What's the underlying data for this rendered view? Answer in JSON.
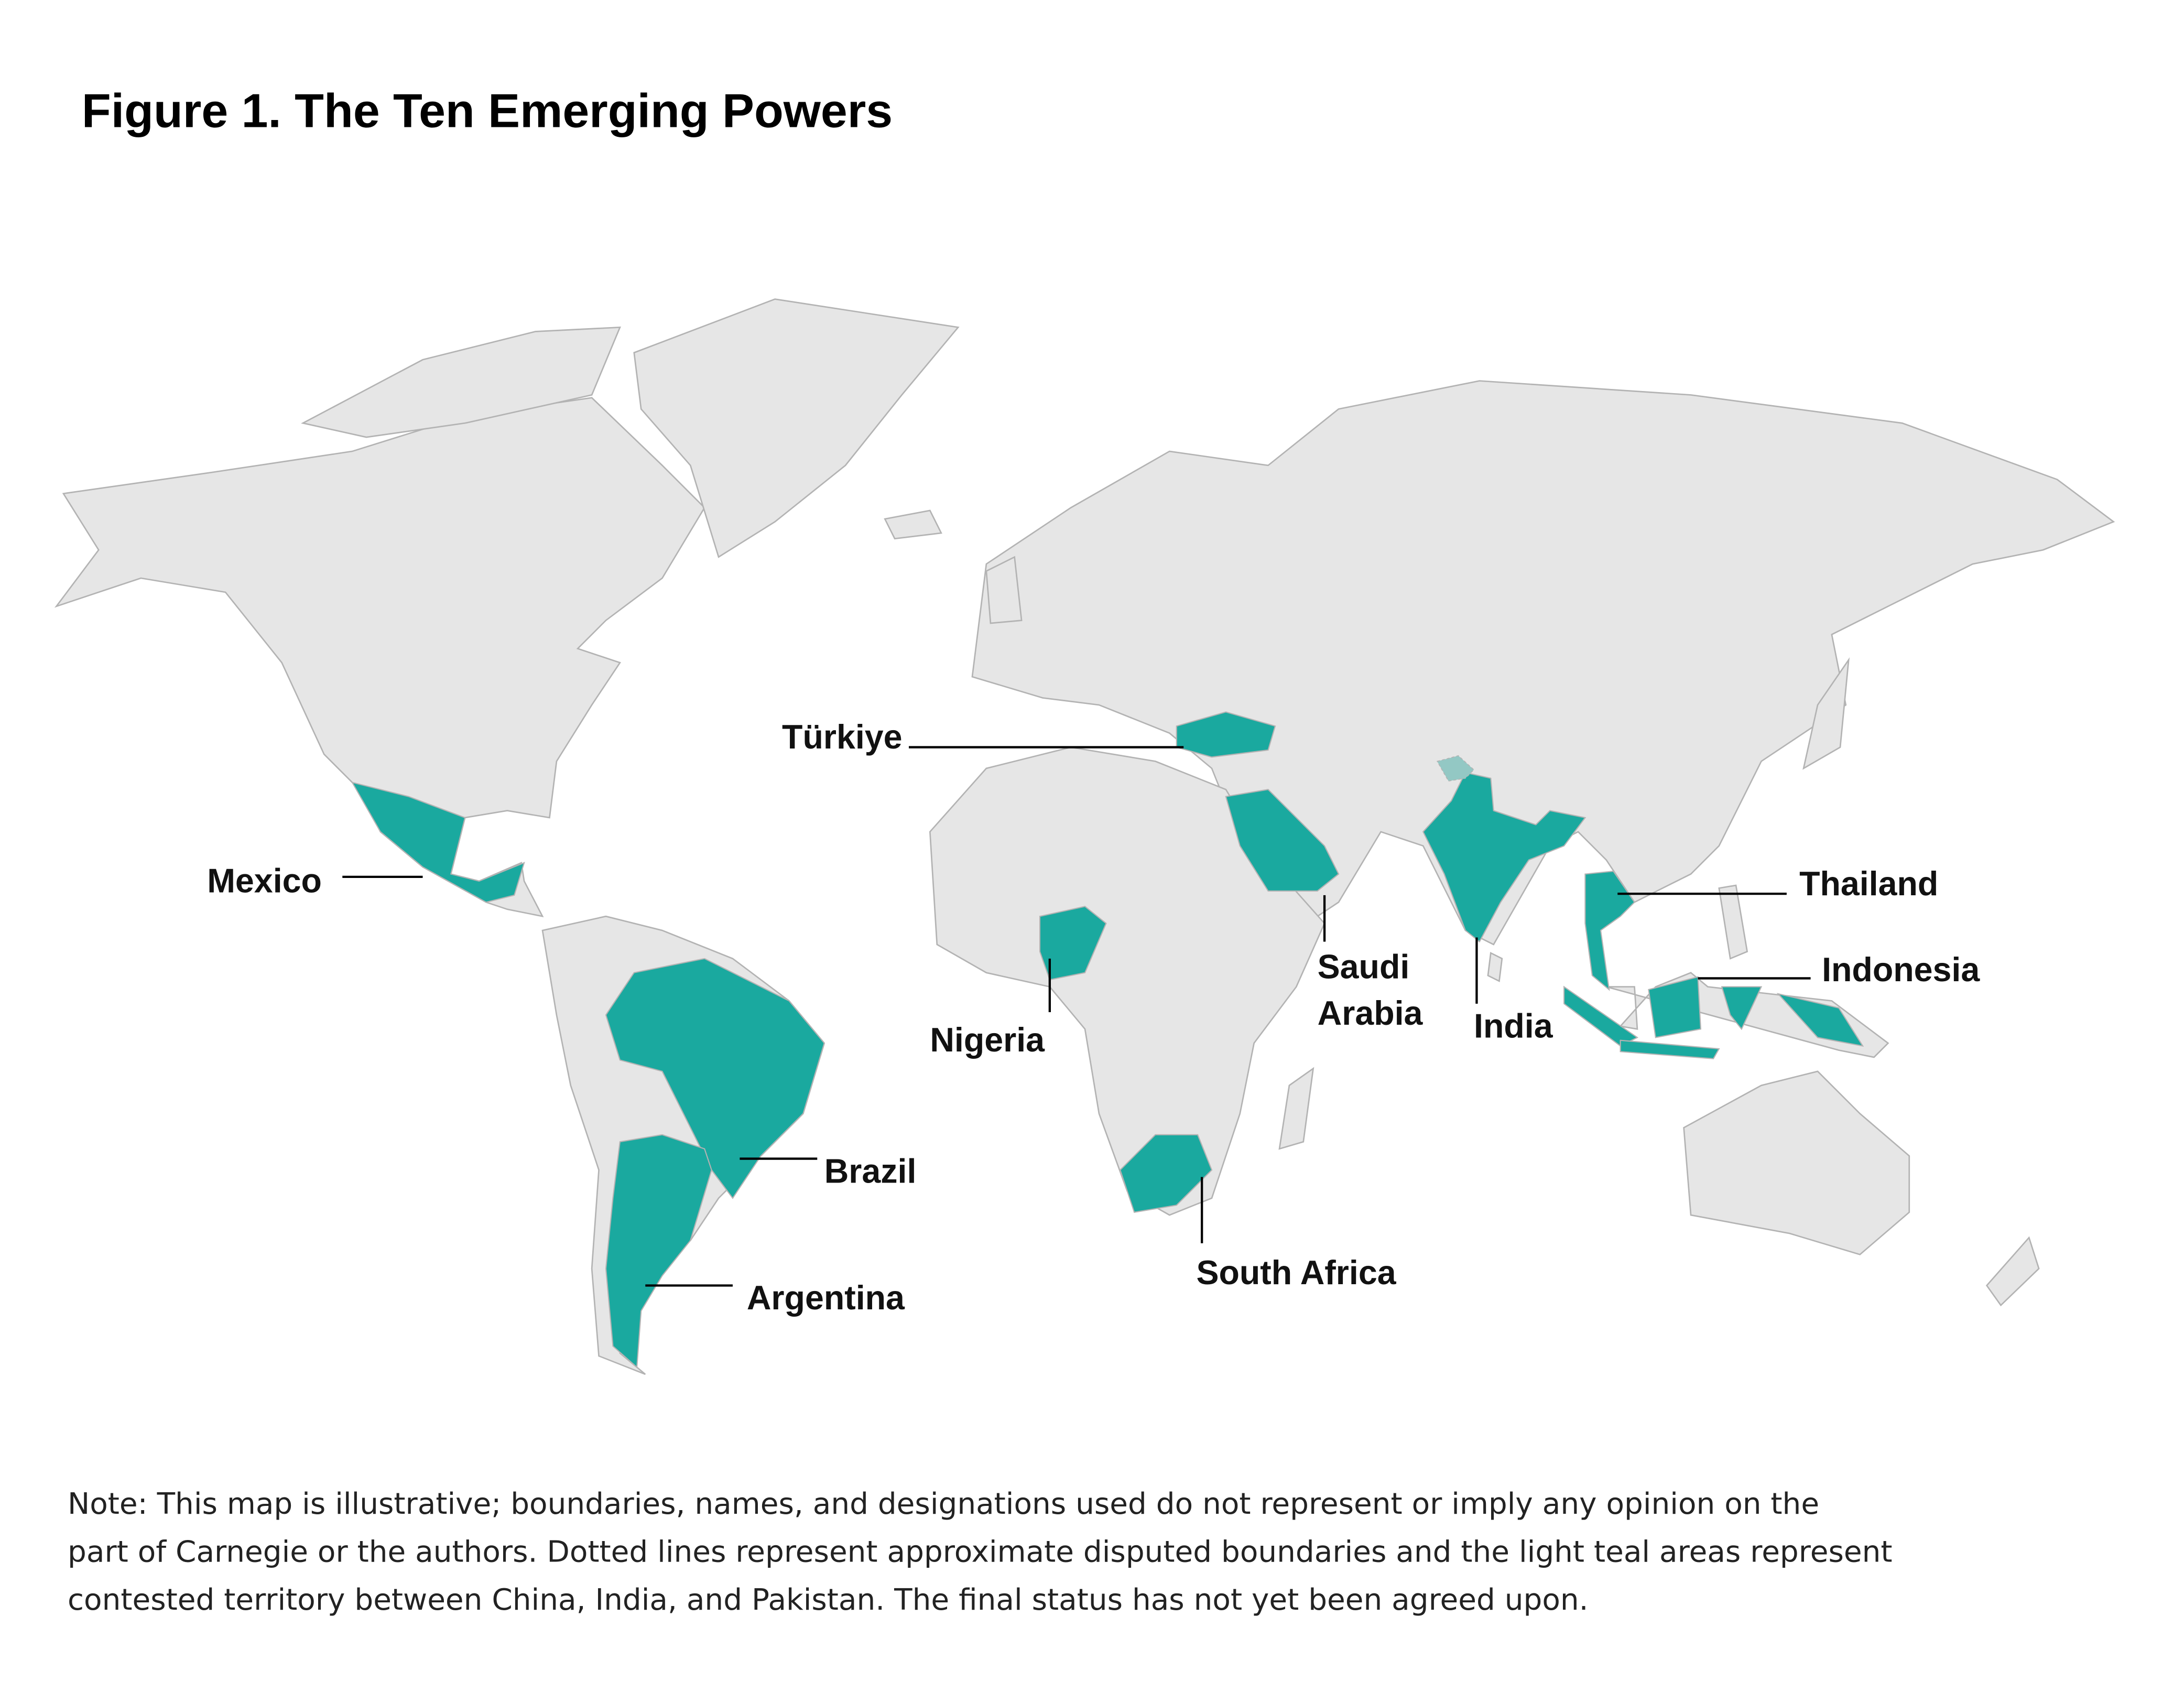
{
  "title": "Figure 1. The Ten Emerging Powers",
  "colors": {
    "highlight": "#1aa99f",
    "land": "#e6e6e6",
    "border": "#b3b3b3",
    "disputed": "#93c8c4",
    "background": "#ffffff"
  },
  "countries": {
    "turkiye": "Türkiye",
    "mexico": "Mexico",
    "thailand": "Thailand",
    "indonesia": "Indonesia",
    "saudi_arabia_line1": "Saudi",
    "saudi_arabia_line2": "Arabia",
    "india": "India",
    "nigeria": "Nigeria",
    "brazil": "Brazil",
    "argentina": "Argentina",
    "south_africa": "South Africa"
  },
  "note": [
    "Note: This map is illustrative; boundaries, names, and designations used do not represent or imply any opinion on the",
    "part of Carnegie or the authors. Dotted lines represent approximate disputed boundaries and the light teal areas represent",
    "contested territory between China, India, and Pakistan. The final status has not yet been agreed upon."
  ]
}
